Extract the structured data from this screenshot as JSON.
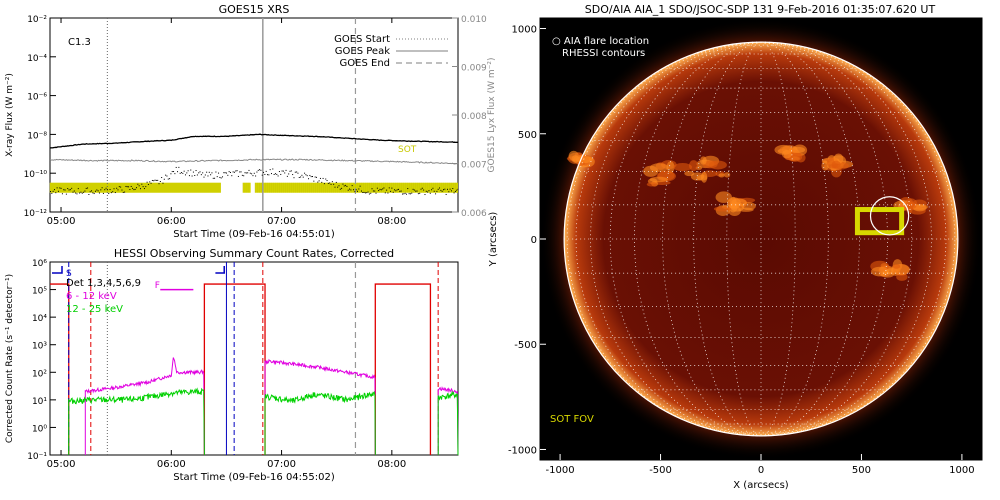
{
  "chart_data": [
    {
      "type": "line",
      "title": "GOES15 XRS",
      "xlabel": "Start Time (09-Feb-16 04:55:01)",
      "ylabel": "X-ray Flux (W m⁻²)",
      "ylabel_right": "GOES15 Lyx Flux (W m⁻²)",
      "x_range": [
        4.9,
        8.6
      ],
      "ylim_log": [
        -12,
        -2
      ],
      "x_ticks": [
        "05:00",
        "06:00",
        "07:00",
        "08:00"
      ],
      "x_tick_values": [
        5,
        6,
        7,
        8
      ],
      "y_ticks": [
        "10⁻¹²",
        "10⁻¹⁰",
        "10⁻⁸",
        "10⁻⁶",
        "10⁻⁴",
        "10⁻²"
      ],
      "y_tick_values": [
        -12,
        -10,
        -8,
        -6,
        -4,
        -2
      ],
      "y2_range": [
        0.006,
        0.01
      ],
      "y2_ticks": [
        "0.006",
        "0.007",
        "0.008",
        "0.009",
        "0.010"
      ],
      "y2_tick_values": [
        0.006,
        0.007,
        0.008,
        0.009,
        0.01
      ],
      "flare_class": "C1.3",
      "sot_label": "SOT",
      "legend": [
        {
          "label": "GOES Start",
          "style": "dotted"
        },
        {
          "label": "GOES Peak",
          "style": "solid"
        },
        {
          "label": "GOES End",
          "style": "dashed"
        }
      ],
      "event_lines": {
        "start": 5.42,
        "peak": 6.83,
        "end": 7.67
      },
      "series": [
        {
          "name": "long channel (black)",
          "color": "#000000",
          "x": [
            4.9,
            5.2,
            5.5,
            5.8,
            6.0,
            6.2,
            6.5,
            6.8,
            7.0,
            7.3,
            7.6,
            7.9,
            8.2,
            8.6
          ],
          "y": [
            -8.7,
            -8.5,
            -8.45,
            -8.35,
            -8.3,
            -8.1,
            -8.1,
            -8.0,
            -8.05,
            -8.1,
            -8.2,
            -8.3,
            -8.35,
            -8.4
          ]
        },
        {
          "name": "Lyman-alpha (gray)",
          "color": "#888888",
          "x": [
            4.9,
            5.3,
            5.7,
            6.0,
            6.4,
            6.8,
            7.2,
            7.6,
            8.0,
            8.3,
            8.6
          ],
          "y": [
            -9.3,
            -9.35,
            -9.35,
            -9.4,
            -9.35,
            -9.3,
            -9.3,
            -9.35,
            -9.4,
            -9.45,
            -9.5
          ]
        },
        {
          "name": "short channel (dotted)",
          "color": "#000000",
          "x": [
            4.9,
            5.3,
            5.6,
            5.9,
            6.05,
            6.3,
            6.6,
            6.9,
            7.2,
            7.5,
            7.8,
            8.1,
            8.6
          ],
          "y": [
            -10.9,
            -10.9,
            -10.8,
            -10.4,
            -9.8,
            -10.1,
            -10.0,
            -9.9,
            -10.1,
            -10.6,
            -10.9,
            -10.9,
            -10.9
          ]
        }
      ],
      "sot_bands": [
        [
          4.9,
          6.45
        ],
        [
          6.65,
          6.72
        ],
        [
          6.76,
          8.6
        ]
      ]
    },
    {
      "type": "line",
      "title": "HESSI Observing Summary Count Rates, Corrected",
      "xlabel": "Start Time (09-Feb-16 04:55:02)",
      "ylabel": "Corrected Count Rate (s⁻¹ detector⁻¹)",
      "x_range": [
        4.9,
        8.6
      ],
      "ylim_log": [
        -1,
        6
      ],
      "x_ticks": [
        "05:00",
        "06:00",
        "07:00",
        "08:00"
      ],
      "x_tick_values": [
        5,
        6,
        7,
        8
      ],
      "y_ticks": [
        "10⁻¹",
        "10⁰",
        "10¹",
        "10²",
        "10³",
        "10⁴",
        "10⁵",
        "10⁶"
      ],
      "y_tick_values": [
        -1,
        0,
        1,
        2,
        3,
        4,
        5,
        6
      ],
      "legend": [
        {
          "label": "Det 1,3,4,5,6,9",
          "color": "#000000"
        },
        {
          "label": "6 - 12 keV",
          "color": "#e000e0"
        },
        {
          "label": "12 - 25 keV",
          "color": "#00d000"
        }
      ],
      "flag_labels": {
        "s": "S",
        "f": "F"
      },
      "night_intervals": [
        [
          6.3,
          6.85
        ],
        [
          7.85,
          8.35
        ]
      ],
      "saa_lines": [
        5.07,
        6.57
      ],
      "red_dashed": [
        5.27,
        6.83,
        8.42
      ],
      "gray_dashed": [
        7.67
      ],
      "series": [
        {
          "name": "6 - 12 keV",
          "color": "#e000e0",
          "x": [
            5.22,
            5.5,
            5.8,
            6.0,
            6.02,
            6.05,
            6.25,
            6.9,
            7.3,
            7.8,
            8.45,
            8.6
          ],
          "y": [
            1.3,
            1.45,
            1.65,
            1.9,
            2.6,
            2.0,
            2.0,
            2.4,
            2.2,
            1.85,
            1.4,
            1.3
          ]
        },
        {
          "name": "12 - 25 keV",
          "color": "#00d000",
          "x": [
            5.07,
            5.3,
            5.6,
            5.8,
            6.0,
            6.25,
            6.9,
            7.1,
            7.3,
            7.6,
            7.8,
            8.45,
            8.6
          ],
          "y": [
            0.95,
            1.0,
            1.0,
            1.1,
            1.25,
            1.3,
            1.1,
            0.95,
            1.2,
            1.0,
            1.2,
            1.1,
            1.2
          ]
        }
      ]
    },
    {
      "type": "scatter",
      "title": "SDO/AIA AIA_1 SDO/JSOC-SDP 131  9-Feb-2016 01:35:07.620 UT",
      "xlabel": "X (arcsecs)",
      "ylabel": "Y (arcsecs)",
      "xlim": [
        -1100,
        1100
      ],
      "ylim": [
        -1050,
        1050
      ],
      "x_ticks": [
        "-1000",
        "-500",
        "0",
        "500",
        "1000"
      ],
      "x_tick_values": [
        -1000,
        -500,
        0,
        500,
        1000
      ],
      "y_ticks": [
        "-1000",
        "-500",
        "0",
        "500",
        "1000"
      ],
      "y_tick_values": [
        -1000,
        -500,
        0,
        500,
        1000
      ],
      "solar_radius": 980,
      "legend": [
        "○ AIA flare location",
        "RHESSI contours"
      ],
      "sot_fov_label": "SOT FOV",
      "flare_circle": {
        "x": 640,
        "y": 110,
        "r": 95
      },
      "sot_fov": {
        "x": [
          480,
          700
        ],
        "y": [
          30,
          140
        ]
      }
    }
  ]
}
